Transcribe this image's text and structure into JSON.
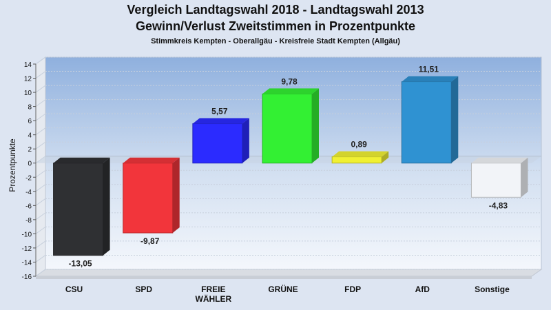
{
  "chart_data": {
    "type": "bar",
    "title": "Vergleich Landtagswahl 2018 - Landtagswahl 2013",
    "subtitle": "Gewinn/Verlust Zweitstimmen in Prozentpunkte",
    "subsubtitle": "Stimmkreis Kempten - Oberallgäu - Kreisfreie Stadt Kempten (Allgäu)",
    "ylabel": "Prozentpunkte",
    "xlabel": "",
    "ylim": [
      -16,
      14
    ],
    "yticks": [
      14,
      12,
      10,
      8,
      6,
      4,
      2,
      0,
      -2,
      -4,
      -6,
      -8,
      -10,
      -12,
      -14,
      -16
    ],
    "grid": true,
    "categories": [
      [
        "CSU"
      ],
      [
        "SPD"
      ],
      [
        "FREIE",
        "WÄHLER"
      ],
      [
        "GRÜNE"
      ],
      [
        "FDP"
      ],
      [
        "AfD"
      ],
      [
        "Sonstige"
      ]
    ],
    "values": [
      -13.05,
      -9.87,
      5.57,
      9.78,
      0.89,
      11.51,
      -4.83
    ],
    "value_labels": [
      "-13,05",
      "-9,87",
      "5,57",
      "9,78",
      "0,89",
      "11,51",
      "-4,83"
    ],
    "colors": [
      "#2f3033",
      "#f2353b",
      "#2b2bff",
      "#33f033",
      "#f0f033",
      "#2f92d2",
      "#f2f4f8"
    ]
  }
}
